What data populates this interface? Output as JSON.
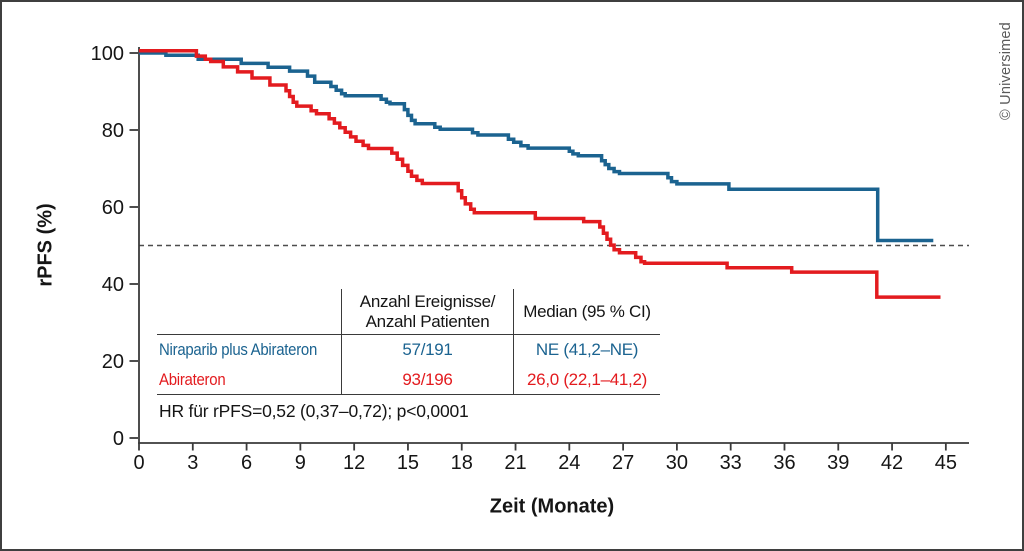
{
  "figure": {
    "y_axis_label": "rPFS (%)",
    "x_axis_label": "Zeit (Monate)",
    "copyright": "© Universimed"
  },
  "table": {
    "header": {
      "events_line1": "Anzahl Ereignisse/",
      "events_line2": "Anzahl Patienten",
      "median": "Median (95 % CI)"
    },
    "rows": [
      {
        "label": "Niraparib plus Abirateron",
        "events": "57/191",
        "median": "NE (41,2–NE)"
      },
      {
        "label": "Abirateron",
        "events": "93/196",
        "median": "26,0 (22,1–41,2)"
      }
    ],
    "footnote": "HR für rPFS=0,52 (0,37–0,72); p<0,0001"
  },
  "chart_data": {
    "type": "line",
    "subtype": "kaplan-meier-step",
    "title": "",
    "xlabel": "Zeit (Monate)",
    "ylabel": "rPFS (%)",
    "xlim": [
      0,
      46.4
    ],
    "ylim": [
      0,
      100
    ],
    "x_ticks": [
      0,
      3,
      6,
      9,
      12,
      15,
      18,
      21,
      24,
      27,
      30,
      33,
      36,
      39,
      42,
      45
    ],
    "y_ticks": [
      0,
      20,
      40,
      60,
      80,
      100
    ],
    "grid": false,
    "reference_line_y": 50,
    "axis_color": "#3a3a3a",
    "reference_line_color": "#4d4d4d",
    "series": [
      {
        "name": "Niraparib plus Abirateron",
        "color": "#1b6390",
        "events_patients": "57/191",
        "median_ci": "NE (41,2–NE)",
        "points": [
          [
            0,
            100
          ],
          [
            1.5,
            99.4
          ],
          [
            3.3,
            98.4
          ],
          [
            5.7,
            97.3
          ],
          [
            7.2,
            96.3
          ],
          [
            8.4,
            95.3
          ],
          [
            9.4,
            94
          ],
          [
            9.8,
            92.4
          ],
          [
            10.7,
            91.3
          ],
          [
            11,
            90.3
          ],
          [
            11.3,
            89.4
          ],
          [
            11.5,
            88.9
          ],
          [
            13.5,
            88
          ],
          [
            13.8,
            87.2
          ],
          [
            14,
            86.8
          ],
          [
            14.8,
            85.3
          ],
          [
            15,
            83.8
          ],
          [
            15.2,
            82.5
          ],
          [
            15.4,
            81.6
          ],
          [
            16.5,
            80.7
          ],
          [
            16.8,
            80.2
          ],
          [
            18.6,
            79.3
          ],
          [
            18.9,
            78.7
          ],
          [
            20.6,
            77.6
          ],
          [
            20.9,
            76.8
          ],
          [
            21.3,
            75.9
          ],
          [
            21.7,
            75.3
          ],
          [
            24,
            74.5
          ],
          [
            24.2,
            73.8
          ],
          [
            24.5,
            73.3
          ],
          [
            25.8,
            72
          ],
          [
            26,
            71
          ],
          [
            26.2,
            70
          ],
          [
            26.5,
            69.2
          ],
          [
            26.8,
            68.7
          ],
          [
            29.5,
            67.6
          ],
          [
            29.7,
            66.6
          ],
          [
            30,
            66
          ],
          [
            32.9,
            64.6
          ],
          [
            41.2,
            51.3
          ],
          [
            44.3,
            51.3
          ]
        ]
      },
      {
        "name": "Abirateron",
        "color": "#e31b1f",
        "events_patients": "93/196",
        "median_ci": "26,0 (22,1–41,2)",
        "points": [
          [
            0,
            100.6
          ],
          [
            3.2,
            99.2
          ],
          [
            3.7,
            98.4
          ],
          [
            4,
            97.8
          ],
          [
            4.7,
            96.4
          ],
          [
            5.5,
            95.1
          ],
          [
            6.3,
            93.5
          ],
          [
            7.3,
            91.7
          ],
          [
            8.2,
            90.2
          ],
          [
            8.4,
            88.7
          ],
          [
            8.6,
            87.2
          ],
          [
            8.8,
            86.2
          ],
          [
            9.6,
            85
          ],
          [
            9.9,
            84.2
          ],
          [
            10.6,
            82.9
          ],
          [
            10.9,
            81.8
          ],
          [
            11.2,
            80.6
          ],
          [
            11.5,
            79.4
          ],
          [
            11.8,
            78.2
          ],
          [
            12.1,
            77.1
          ],
          [
            12.5,
            76
          ],
          [
            12.8,
            75.2
          ],
          [
            14.1,
            74
          ],
          [
            14.4,
            72.4
          ],
          [
            14.7,
            70.8
          ],
          [
            15,
            69.3
          ],
          [
            15.2,
            68
          ],
          [
            15.5,
            66.9
          ],
          [
            15.8,
            66.1
          ],
          [
            17.8,
            64.2
          ],
          [
            18,
            62.4
          ],
          [
            18.2,
            60.8
          ],
          [
            18.5,
            59.4
          ],
          [
            18.7,
            58.5
          ],
          [
            22.1,
            57
          ],
          [
            24.8,
            56.2
          ],
          [
            25.7,
            54.8
          ],
          [
            25.9,
            53.2
          ],
          [
            26.1,
            51.6
          ],
          [
            26.3,
            50.1
          ],
          [
            26.5,
            48.9
          ],
          [
            26.8,
            48.1
          ],
          [
            27.7,
            46.9
          ],
          [
            28,
            45.8
          ],
          [
            28.2,
            45.4
          ],
          [
            32.8,
            44.2
          ],
          [
            36.4,
            43.1
          ],
          [
            41.15,
            36.6
          ],
          [
            44.7,
            36.6
          ]
        ]
      }
    ],
    "annotations": [
      "HR für rPFS=0,52 (0,37–0,72); p<0,0001"
    ]
  }
}
